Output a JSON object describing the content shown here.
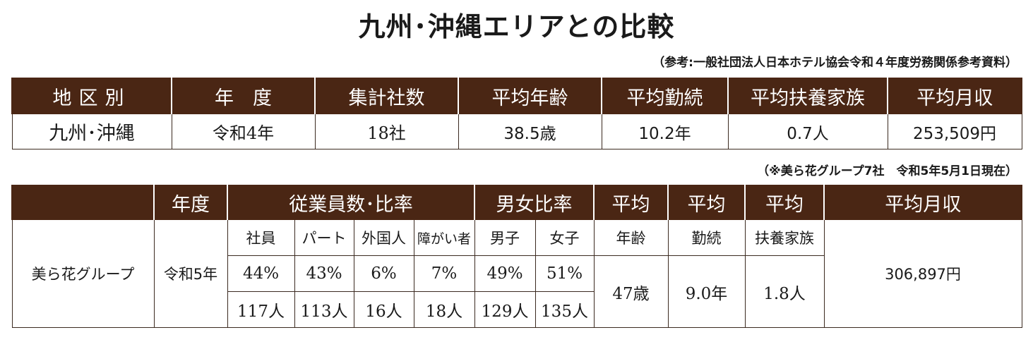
{
  "title": "九州･沖縄エリアとの比較",
  "source_note": "（参考:一般社団法人日本ホテル協会令和４年度労務関係参考資料）",
  "table1": {
    "headers": [
      "地区別",
      "年　度",
      "集計社数",
      "平均年齢",
      "平均勤続",
      "平均扶養家族",
      "平均月収"
    ],
    "row": {
      "region": "九州･沖縄",
      "year": "令和4年",
      "companies": "18社",
      "avg_age": "38.5歳",
      "avg_tenure": "10.2年",
      "avg_dependents": "0.7人",
      "avg_monthly_income": "253,509円"
    }
  },
  "group_note": "（※美ら花グループ7社　令和5年5月1日現在）",
  "table2": {
    "headers": {
      "year": "年度",
      "employee_ratio": "従業員数･比率",
      "gender_ratio": "男女比率",
      "avg1": "平均",
      "avg2": "平均",
      "avg3": "平均",
      "monthly_income": "平均月収"
    },
    "subheaders": {
      "staff": "社員",
      "part": "パート",
      "foreign": "外国人",
      "disabled": "障がい者",
      "male": "男子",
      "female": "女子",
      "age": "年齢",
      "tenure": "勤続",
      "dependents": "扶養家族"
    },
    "group_name": "美ら花グループ",
    "year": "令和5年",
    "percent": {
      "staff": "44%",
      "part": "43%",
      "foreign": "6%",
      "disabled": "7%",
      "male": "49%",
      "female": "51%"
    },
    "counts": {
      "staff": "117人",
      "part": "113人",
      "foreign": "16人",
      "disabled": "18人",
      "male": "129人",
      "female": "135人"
    },
    "avg_age": "47歳",
    "avg_tenure": "9.0年",
    "avg_dependents": "1.8人",
    "avg_monthly_income": "306,897円"
  },
  "colors": {
    "header_bg": "#4a2614",
    "header_text": "#ffffff",
    "border": "#3b2a20"
  }
}
